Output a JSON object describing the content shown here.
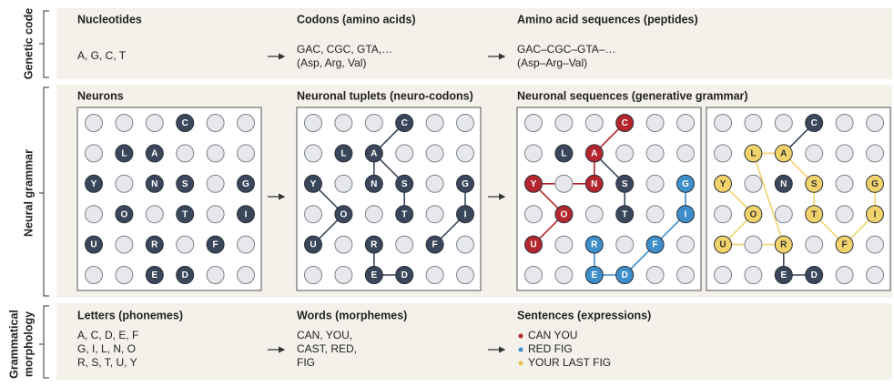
{
  "side_labels": {
    "genetic_code": "Genetic code",
    "neural_grammar": "Neural grammar",
    "grammatical_morphology": [
      "Grammatical",
      "morphology"
    ]
  },
  "genetic_code": {
    "columns": [
      {
        "title": "Nucleotides",
        "lines": [
          "A, G, C, T"
        ]
      },
      {
        "title": "Codons (amino acids)",
        "lines": [
          "GAC, CGC, GTA,…",
          "(Asp, Arg, Val)"
        ]
      },
      {
        "title": "Amino acid sequences (peptides)",
        "lines": [
          "GAC–CGC–GTA–…",
          "(Asp–Arg–Val)"
        ]
      }
    ]
  },
  "neural_grammar": {
    "titles": [
      "Neurons",
      "Neuronal tuplets (neuro-codons)",
      "Neuronal sequences (generative grammar)"
    ],
    "letter_grid": [
      [
        null,
        null,
        null,
        "C",
        null,
        null
      ],
      [
        null,
        "L",
        "A",
        null,
        null,
        null
      ],
      [
        "Y",
        null,
        "N",
        "S",
        null,
        "G"
      ],
      [
        null,
        "O",
        null,
        "T",
        null,
        "I"
      ],
      [
        "U",
        null,
        "R",
        null,
        "F",
        null
      ],
      [
        null,
        null,
        "E",
        "D",
        null,
        null
      ]
    ]
  },
  "grammatical_morphology": {
    "columns": [
      {
        "title": "Letters (phonemes)",
        "lines": [
          "A, C, D, E, F",
          "G, I, L, N, O",
          "R, S, T, U, Y"
        ]
      },
      {
        "title": "Words (morphemes)",
        "lines": [
          "CAN, YOU,",
          "CAST, RED,",
          "FIG"
        ]
      },
      {
        "title": "Sentences (expressions)",
        "lines": [
          "CAN YOU",
          "RED FIG",
          "YOUR LAST FIG"
        ]
      }
    ]
  }
}
